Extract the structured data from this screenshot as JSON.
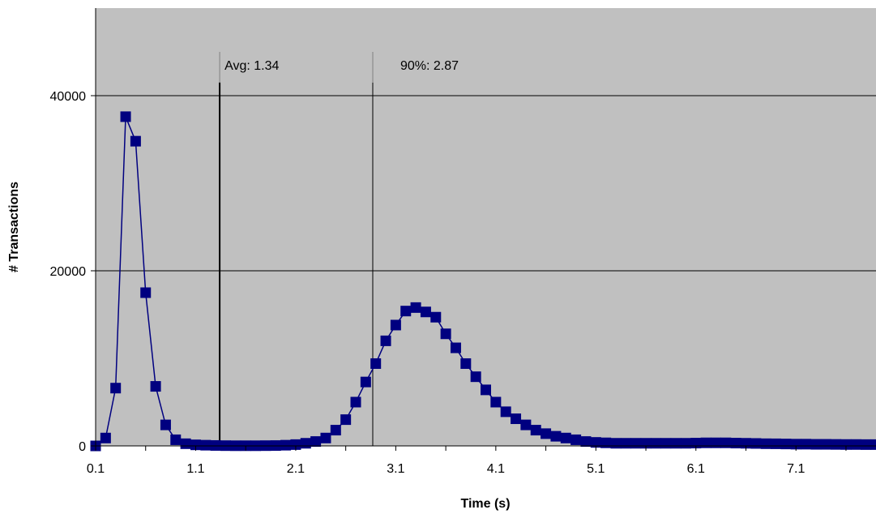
{
  "chart_data": {
    "type": "line",
    "title": "",
    "xlabel": "Time (s)",
    "ylabel": "# Transactions",
    "xlim": [
      0.1,
      7.9
    ],
    "ylim": [
      0,
      50000
    ],
    "x_tick_labels": [
      "0.1",
      "1.1",
      "2.1",
      "3.1",
      "4.1",
      "5.1",
      "6.1",
      "7.1"
    ],
    "y_tick_labels": [
      "0",
      "20000",
      "40000"
    ],
    "grid": "horizontal major gridlines",
    "legend": "none",
    "series": [
      {
        "marker": "square",
        "x": [
          0.1,
          0.2,
          0.3,
          0.4,
          0.5,
          0.6,
          0.7,
          0.8,
          0.9,
          1.0,
          1.1,
          1.2,
          1.3,
          1.4,
          1.5,
          1.6,
          1.7,
          1.8,
          1.9,
          2.0,
          2.1,
          2.2,
          2.3,
          2.4,
          2.5,
          2.6,
          2.7,
          2.8,
          2.9,
          3.0,
          3.1,
          3.2,
          3.3,
          3.4,
          3.5,
          3.6,
          3.7,
          3.8,
          3.9,
          4.0,
          4.1,
          4.2,
          4.3,
          4.4,
          4.5,
          4.6,
          4.7,
          4.8,
          4.9,
          5.0,
          5.1,
          5.2,
          5.3,
          5.4,
          5.5,
          5.6,
          5.7,
          5.8,
          5.9,
          6.0,
          6.1,
          6.2,
          6.3,
          6.4,
          6.5,
          6.6,
          6.7,
          6.8,
          6.9,
          7.0,
          7.1,
          7.2,
          7.3,
          7.4,
          7.5,
          7.6,
          7.7,
          7.8,
          7.9
        ],
        "y": [
          0,
          900,
          6600,
          37600,
          34800,
          17500,
          6800,
          2400,
          700,
          250,
          120,
          80,
          50,
          30,
          20,
          20,
          20,
          30,
          40,
          80,
          150,
          300,
          500,
          900,
          1800,
          3000,
          5000,
          7300,
          9400,
          12000,
          13800,
          15400,
          15800,
          15300,
          14700,
          12800,
          11200,
          9400,
          7900,
          6400,
          5000,
          3900,
          3100,
          2400,
          1800,
          1400,
          1100,
          900,
          700,
          500,
          400,
          350,
          300,
          300,
          300,
          300,
          300,
          300,
          300,
          300,
          320,
          350,
          350,
          350,
          320,
          300,
          280,
          250,
          240,
          220,
          200,
          200,
          180,
          180,
          170,
          160,
          160,
          150,
          150
        ],
        "color": "#000080"
      }
    ],
    "annotations": [
      {
        "label": "Avg: 1.34",
        "x": 1.34
      },
      {
        "label": "90%: 2.87",
        "x": 2.87
      }
    ],
    "colors": {
      "plot_background": "#c0c0c0",
      "gridline": "#000000",
      "series": "#000080"
    }
  }
}
